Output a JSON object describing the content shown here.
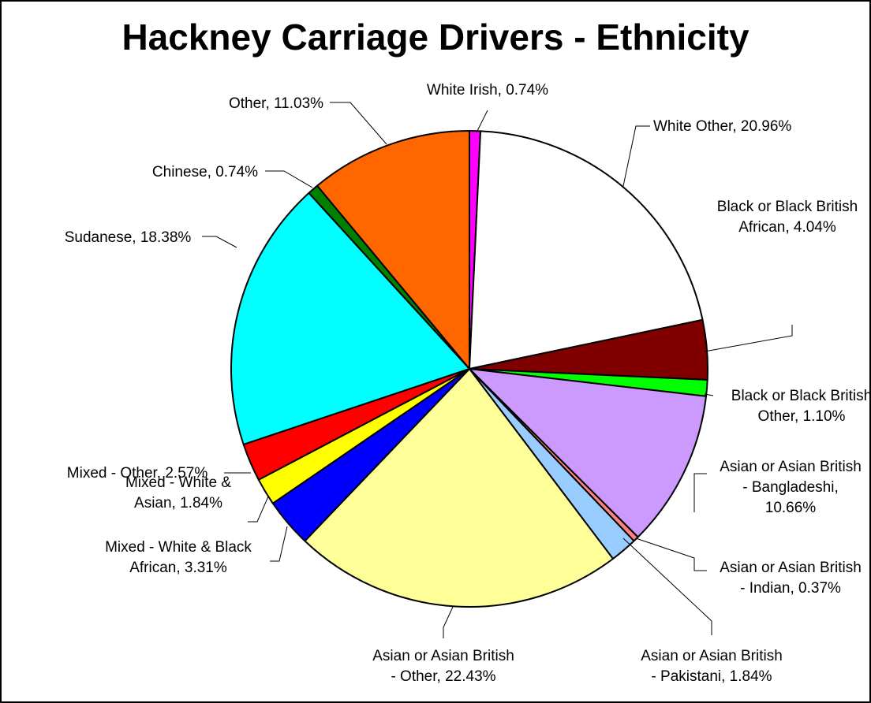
{
  "chart_data": {
    "type": "pie",
    "title": "Hackney Carriage Drivers - Ethnicity",
    "slices": [
      {
        "name": "White Irish",
        "value": 0.74,
        "label": [
          "White Irish, 0.74%"
        ],
        "color": "#FF00FF"
      },
      {
        "name": "White Other",
        "value": 20.96,
        "label": [
          "White Other, 20.96%"
        ],
        "color": "#FFFFFF"
      },
      {
        "name": "Black or Black British African",
        "value": 4.04,
        "label": [
          "Black or Black British",
          "African, 4.04%"
        ],
        "color": "#800000"
      },
      {
        "name": "Black or Black British Other",
        "value": 1.1,
        "label": [
          "Black or Black British",
          "Other, 1.10%"
        ],
        "color": "#00FF00"
      },
      {
        "name": "Asian or Asian British - Bangladeshi",
        "value": 10.66,
        "label": [
          "Asian or Asian British",
          "- Bangladeshi,",
          "10.66%"
        ],
        "color": "#CC99FF"
      },
      {
        "name": "Asian or Asian British - Indian",
        "value": 0.37,
        "label": [
          "Asian or Asian British",
          "- Indian, 0.37%"
        ],
        "color": "#FF8080"
      },
      {
        "name": "Asian or Asian British - Pakistani",
        "value": 1.84,
        "label": [
          "Asian or Asian British",
          "- Pakistani, 1.84%"
        ],
        "color": "#99CCFF"
      },
      {
        "name": "Asian or Asian British - Other",
        "value": 22.43,
        "label": [
          "Asian or Asian British",
          "- Other, 22.43%"
        ],
        "color": "#FFFF99"
      },
      {
        "name": "Mixed - White & Black African",
        "value": 3.31,
        "label": [
          "Mixed - White & Black",
          "African, 3.31%"
        ],
        "color": "#0000FF"
      },
      {
        "name": "Mixed - White & Asian",
        "value": 1.84,
        "label": [
          "Mixed - White &",
          "Asian, 1.84%"
        ],
        "color": "#FFFF00"
      },
      {
        "name": "Mixed - Other",
        "value": 2.57,
        "label": [
          "Mixed - Other, 2.57%"
        ],
        "color": "#FF0000"
      },
      {
        "name": "Sudanese",
        "value": 18.38,
        "label": [
          "Sudanese, 18.38%"
        ],
        "color": "#00FFFF"
      },
      {
        "name": "Chinese",
        "value": 0.74,
        "label": [
          "Chinese, 0.74%"
        ],
        "color": "#008000"
      },
      {
        "name": "Other",
        "value": 11.03,
        "label": [
          "Other, 11.03%"
        ],
        "color": "#FF6600"
      }
    ]
  }
}
